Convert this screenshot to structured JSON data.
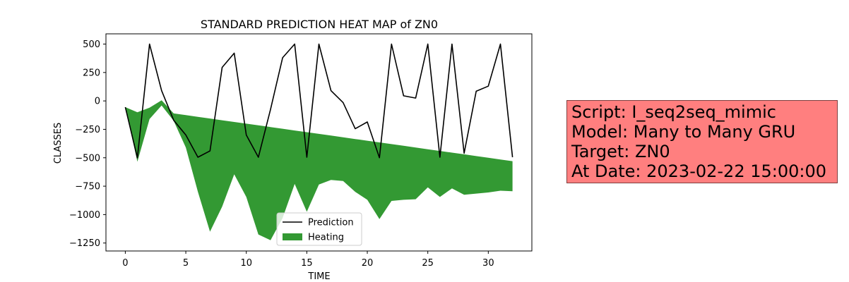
{
  "chart_data": {
    "type": "line",
    "title": "STANDARD PREDICTION HEAT MAP of ZN0",
    "xlabel": "TIME",
    "ylabel": "CLASSES",
    "xlim": [
      -1.6,
      33.6
    ],
    "ylim": [
      -1320,
      590
    ],
    "xticks": [
      0,
      5,
      10,
      15,
      20,
      25,
      30
    ],
    "yticks": [
      500,
      250,
      0,
      -250,
      -500,
      -750,
      -1000,
      -1250
    ],
    "ytick_labels": [
      "500",
      "250",
      "0",
      "−250",
      "−500",
      "−750",
      "−1000",
      "−1250"
    ],
    "legend": {
      "position": "lower-center",
      "entries": [
        {
          "label": "Prediction",
          "kind": "line",
          "color": "#000000"
        },
        {
          "label": "Heating",
          "kind": "patch",
          "color": "#339933"
        }
      ]
    },
    "series": [
      {
        "name": "Prediction",
        "kind": "line",
        "color": "#000000",
        "x": [
          0,
          1,
          2,
          3,
          4,
          5,
          6,
          7,
          8,
          9,
          10,
          11,
          12,
          13,
          14,
          15,
          16,
          17,
          18,
          19,
          20,
          21,
          22,
          23,
          24,
          25,
          26,
          27,
          28,
          29,
          30,
          31,
          32
        ],
        "y": [
          -55,
          -500,
          500,
          90,
          -170,
          -300,
          -495,
          -440,
          295,
          420,
          -300,
          -495,
          -75,
          380,
          500,
          -495,
          500,
          90,
          -15,
          -245,
          -185,
          -500,
          500,
          45,
          25,
          500,
          -495,
          500,
          -460,
          85,
          130,
          500,
          -495
        ]
      },
      {
        "name": "Heating",
        "kind": "fill_between",
        "color": "#339933",
        "x": [
          0,
          1,
          2,
          3,
          4,
          5,
          6,
          7,
          8,
          9,
          10,
          11,
          12,
          13,
          14,
          15,
          16,
          17,
          18,
          19,
          20,
          21,
          22,
          23,
          24,
          25,
          26,
          27,
          28,
          29,
          30,
          31,
          32
        ],
        "y_upper": [
          -55,
          -100,
          -60,
          5,
          -110,
          -125,
          -140,
          -155,
          -170,
          -185,
          -200,
          -215,
          -230,
          -245,
          -260,
          -275,
          -290,
          -305,
          -320,
          -335,
          -350,
          -365,
          -380,
          -395,
          -410,
          -425,
          -440,
          -455,
          -470,
          -485,
          -500,
          -515,
          -530
        ],
        "y_lower": [
          -55,
          -535,
          -160,
          -40,
          -175,
          -410,
          -800,
          -1150,
          -930,
          -645,
          -845,
          -1175,
          -1225,
          -1030,
          -730,
          -975,
          -735,
          -695,
          -705,
          -800,
          -870,
          -1040,
          -880,
          -870,
          -865,
          -760,
          -845,
          -770,
          -825,
          -815,
          -805,
          -790,
          -795
        ]
      }
    ]
  },
  "info_box": {
    "script": "Script: I_seq2seq_mimic",
    "model": "Model: Many to Many GRU",
    "target": "Target: ZN0",
    "date": "At Date: 2023-02-22 15:00:00",
    "background": "#ff7f7f"
  }
}
